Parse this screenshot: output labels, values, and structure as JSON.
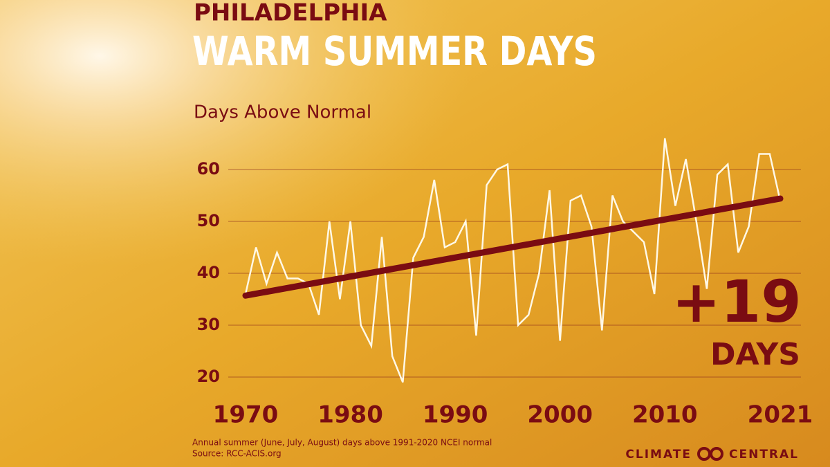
{
  "chart_data": {
    "type": "line",
    "title": "PHILADELPHIA",
    "subtitle": "WARM SUMMER DAYS",
    "y_label": "Days Above Normal",
    "x": [
      1970,
      1971,
      1972,
      1973,
      1974,
      1975,
      1976,
      1977,
      1978,
      1979,
      1980,
      1981,
      1982,
      1983,
      1984,
      1985,
      1986,
      1987,
      1988,
      1989,
      1990,
      1991,
      1992,
      1993,
      1994,
      1995,
      1996,
      1997,
      1998,
      1999,
      2000,
      2001,
      2002,
      2003,
      2004,
      2005,
      2006,
      2007,
      2008,
      2009,
      2010,
      2011,
      2012,
      2013,
      2014,
      2015,
      2016,
      2017,
      2018,
      2019,
      2020,
      2021
    ],
    "series": [
      {
        "color": "#fff8e6",
        "values": [
          36,
          45,
          38,
          44,
          39,
          39,
          38,
          32,
          50,
          35,
          50,
          30,
          26,
          47,
          24,
          19,
          43,
          47,
          58,
          45,
          46,
          50,
          28,
          57,
          60,
          61,
          30,
          32,
          40,
          56,
          27,
          54,
          55,
          49,
          29,
          55,
          50,
          48,
          46,
          36,
          66,
          53,
          62,
          50,
          37,
          59,
          61,
          44,
          49,
          63,
          63,
          54
        ]
      }
    ],
    "trend": {
      "x": [
        1970,
        2021
      ],
      "values": [
        35.7,
        54.4
      ],
      "color": "#7a0c12"
    },
    "xlim": [
      1970,
      2021
    ],
    "xticks": [
      1970,
      1980,
      1990,
      2000,
      2010,
      2021
    ],
    "ylim": [
      17,
      67
    ],
    "yticks": [
      20,
      30,
      40,
      50,
      60
    ],
    "grid": true,
    "annotation": {
      "value": "+19",
      "unit": "DAYS"
    },
    "footnote": "Annual summer (June, July, August) days above 1991-2020 NCEI normal",
    "source": "Source: RCC-ACIS.org",
    "logo": {
      "left": "CLIMATE",
      "right": "CENTRAL"
    }
  }
}
